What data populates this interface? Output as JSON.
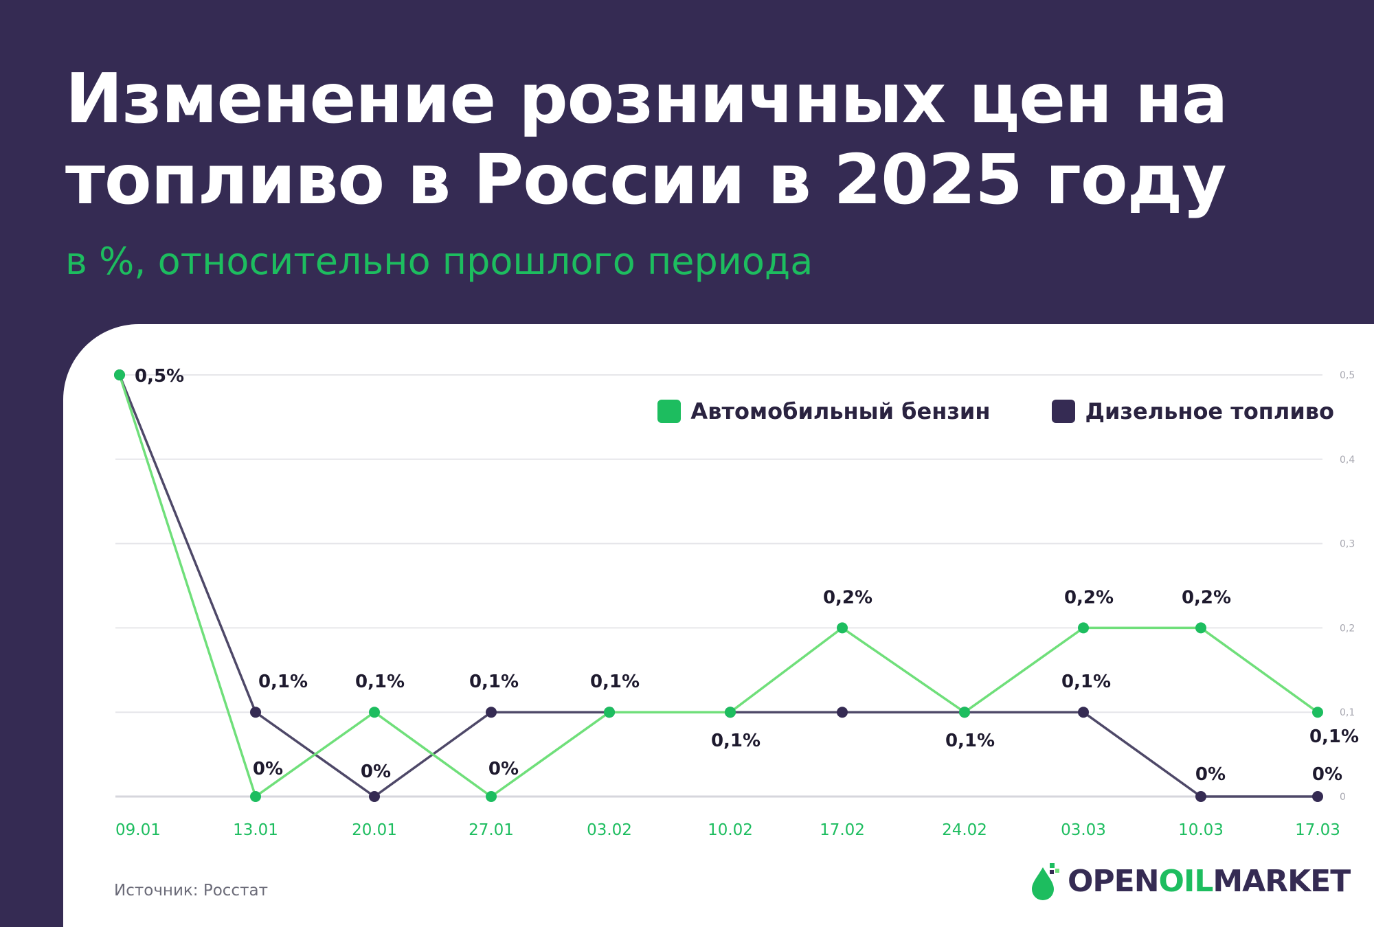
{
  "header": {
    "title_line1": "Изменение розничных цен на",
    "title_line2": "топливо в России в 2025 году",
    "subtitle": "в %, относительно прошлого периода"
  },
  "legend": {
    "gasoline": "Автомобильный бензин",
    "diesel": "Дизельное топливо"
  },
  "footer": {
    "source": "Источник: Росстат",
    "logo_open": "OPEN",
    "logo_oil": "OIL",
    "logo_market": "MARKET"
  },
  "colors": {
    "gasoline": "#1dbd5f",
    "gasoline_line": "#6fdf7a",
    "diesel": "#352b53",
    "diesel_line": "#4e4868",
    "axis_text_x": "#1dbd5f",
    "axis_text_y": "#a7a7b0",
    "grid": "#e6e6ea"
  },
  "chart_data": {
    "type": "line",
    "title": "Изменение розничных цен на топливо в России в 2025 году",
    "subtitle": "в %, относительно прошлого периода",
    "categories": [
      "09.01",
      "13.01",
      "20.01",
      "27.01",
      "03.02",
      "10.02",
      "17.02",
      "24.02",
      "03.03",
      "10.03",
      "17.03"
    ],
    "y_ticks": [
      "0",
      "0,1",
      "0,2",
      "0,3",
      "0,4",
      "0,5"
    ],
    "ylim": [
      0,
      0.5
    ],
    "grid": true,
    "legend_position": "top-right",
    "series": [
      {
        "name": "Автомобильный бензин",
        "values": [
          0.5,
          0,
          0.1,
          0,
          0.1,
          0.1,
          0.2,
          0.1,
          0.2,
          0.2,
          0.1
        ],
        "labels": [
          "0,5%",
          "0%",
          "0,1%",
          "0%",
          "0,1%",
          "0,1%",
          "0,2%",
          "0,1%",
          "0,2%",
          "0,2%",
          "0,1%"
        ]
      },
      {
        "name": "Дизельное топливо",
        "values": [
          0.5,
          0.1,
          0,
          0.1,
          0.1,
          0.1,
          0.1,
          0.1,
          0.1,
          0,
          0
        ],
        "labels": [
          "",
          "0,1%",
          "0%",
          "0,1%",
          "",
          "",
          "",
          "",
          "0,1%",
          "0%",
          "0%"
        ]
      }
    ]
  }
}
